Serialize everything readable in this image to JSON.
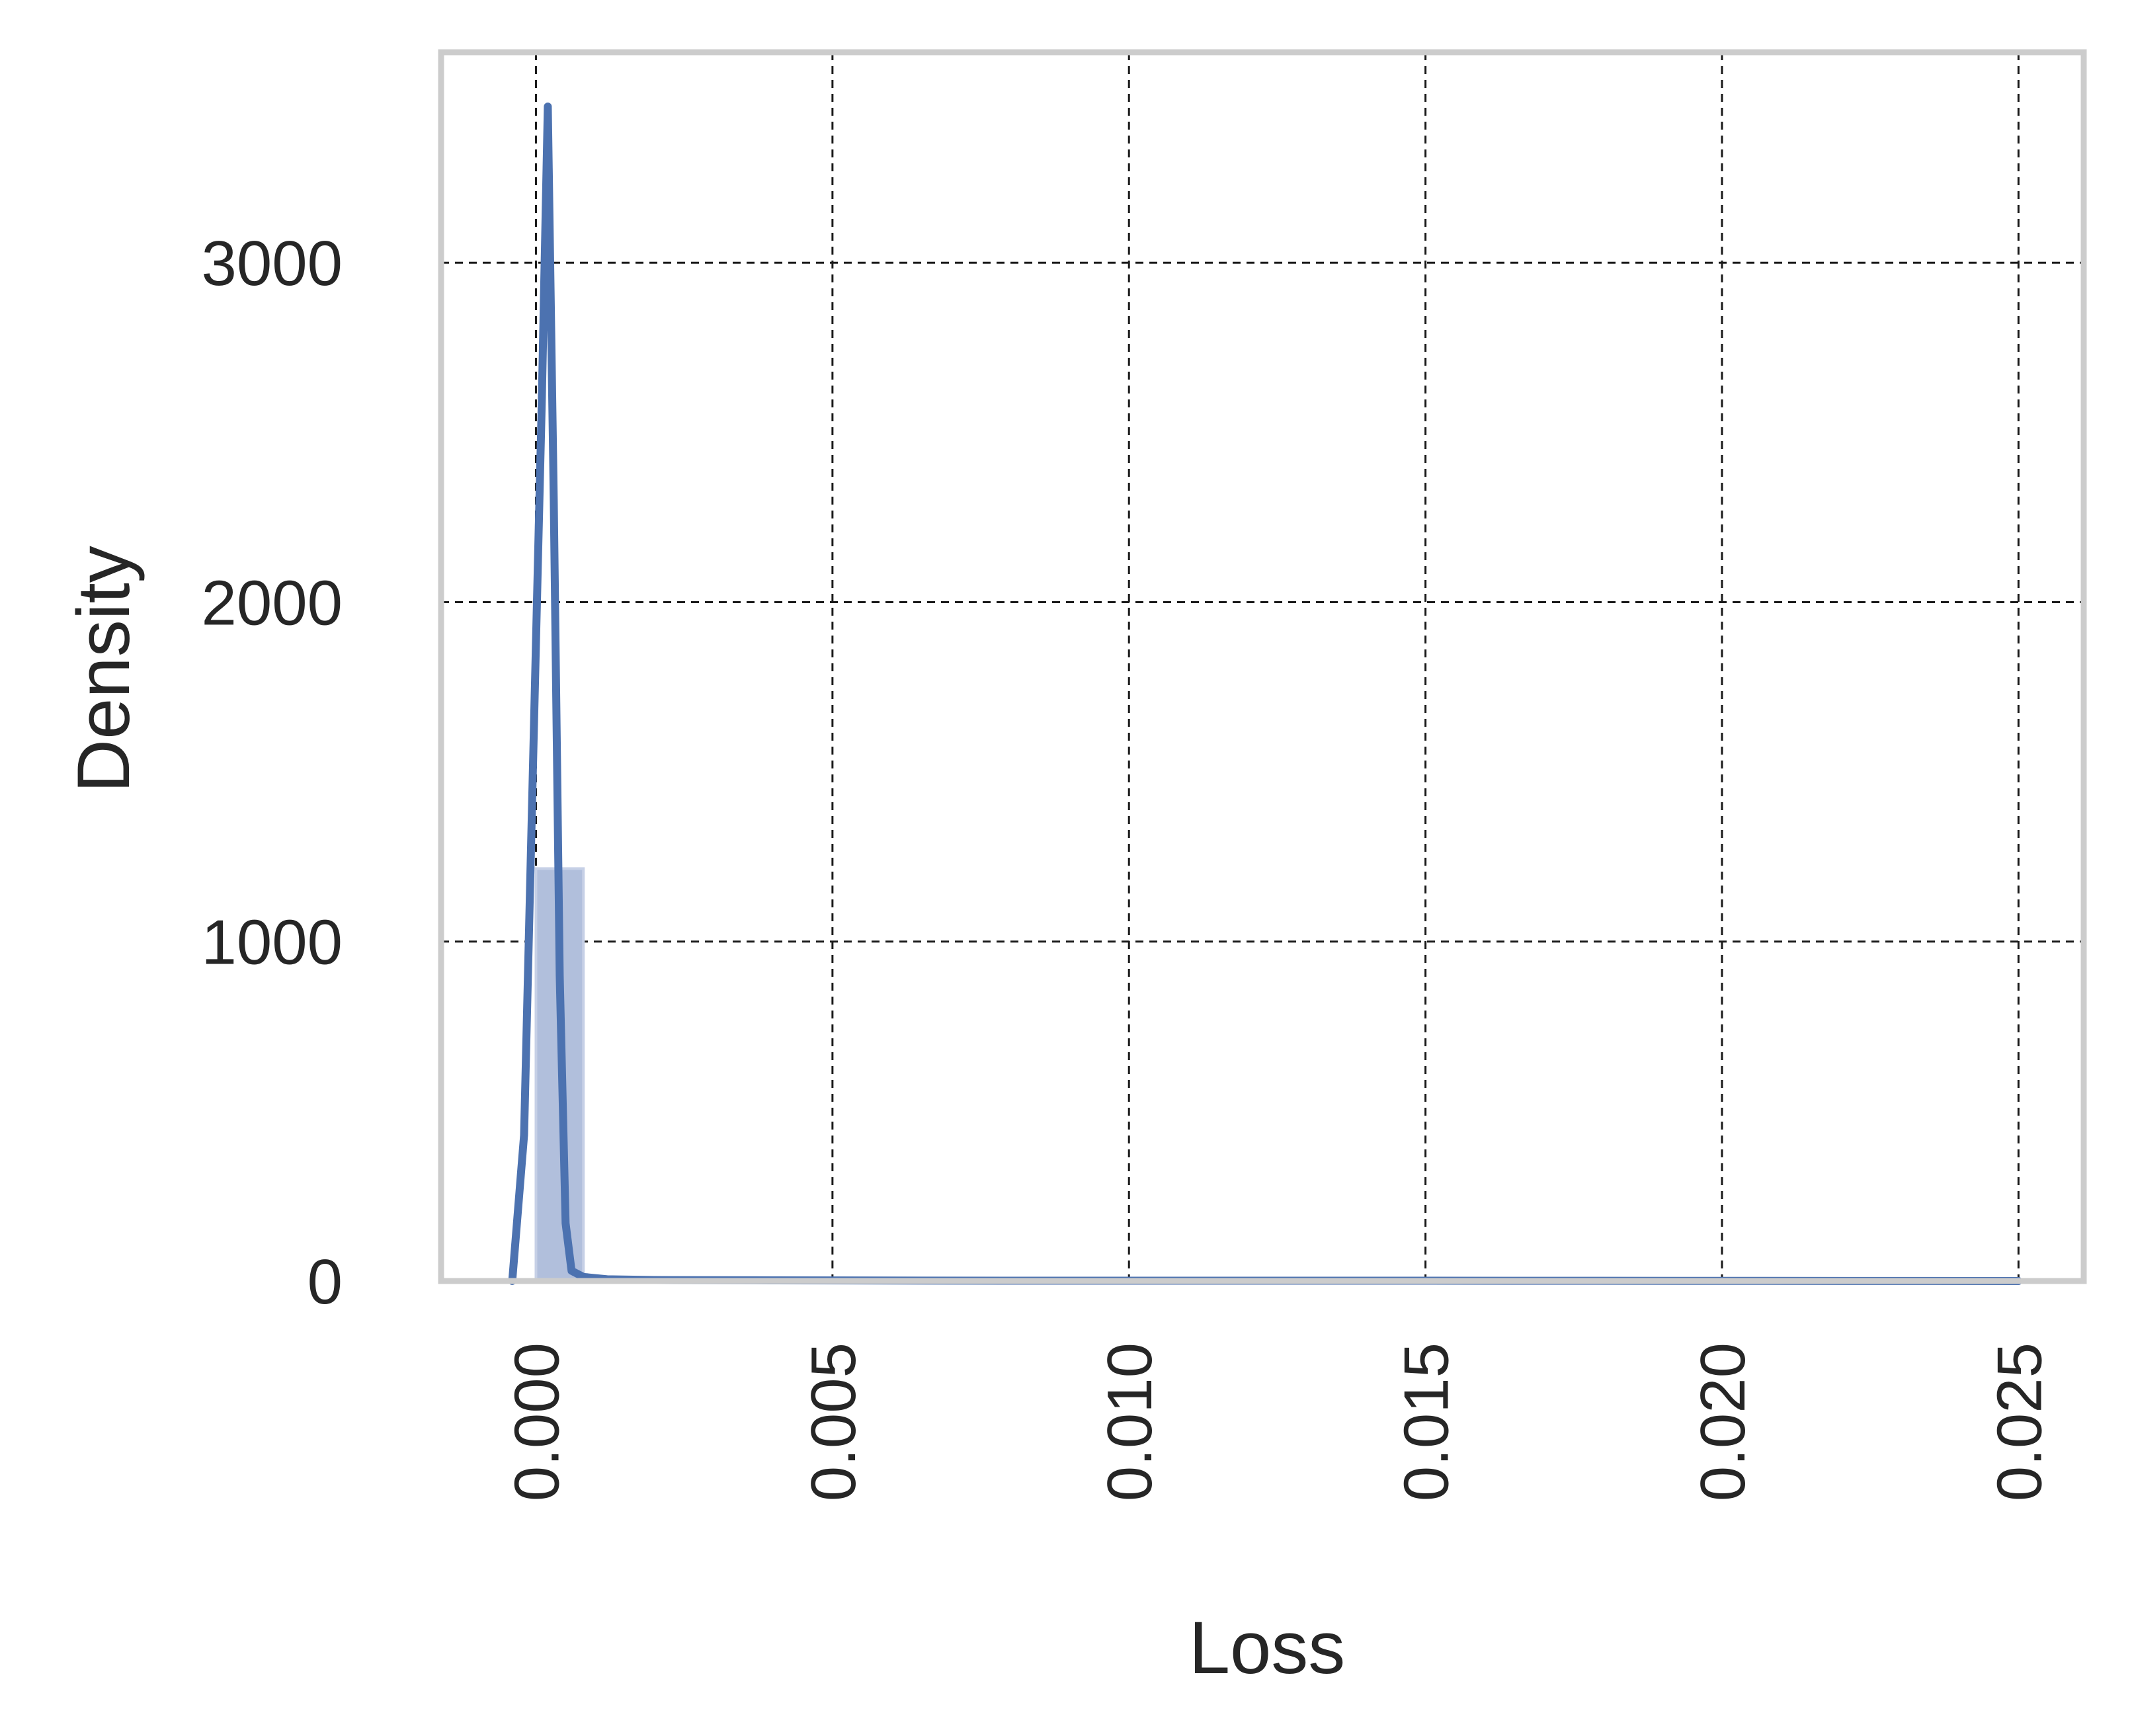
{
  "chart_data": {
    "type": "area",
    "title": "",
    "xlabel": "Loss",
    "ylabel": "Density",
    "xlim": [
      -0.0016,
      0.0261
    ],
    "ylim": [
      0,
      3620
    ],
    "x_ticks": [
      0.0,
      0.005,
      0.01,
      0.015,
      0.02,
      0.025
    ],
    "x_tick_labels": [
      "0.000",
      "0.005",
      "0.010",
      "0.015",
      "0.020",
      "0.025"
    ],
    "y_ticks": [
      0,
      1000,
      2000,
      3000
    ],
    "y_tick_labels": [
      "0",
      "1000",
      "2000",
      "3000"
    ],
    "grid": true,
    "legend": "none",
    "histogram": {
      "bins": [
        {
          "x0": 0.0,
          "x1": 0.0008,
          "density": 1215
        },
        {
          "x0": 0.0008,
          "x1": 0.0016,
          "density": 3
        },
        {
          "x0": 0.0016,
          "x1": 0.0024,
          "density": 1
        }
      ],
      "color": "#b1bfdc"
    },
    "kde": {
      "x": [
        -0.0004,
        -0.0002,
        0.0001,
        0.0002,
        0.0003,
        0.0004,
        0.0005,
        0.0006,
        0.0008,
        0.0012,
        0.002,
        0.004,
        0.008,
        0.015,
        0.025
      ],
      "y": [
        0,
        430,
        2600,
        3460,
        2300,
        900,
        170,
        30,
        12,
        5,
        3,
        2,
        1,
        1,
        0
      ],
      "color": "#4c72b0"
    }
  }
}
